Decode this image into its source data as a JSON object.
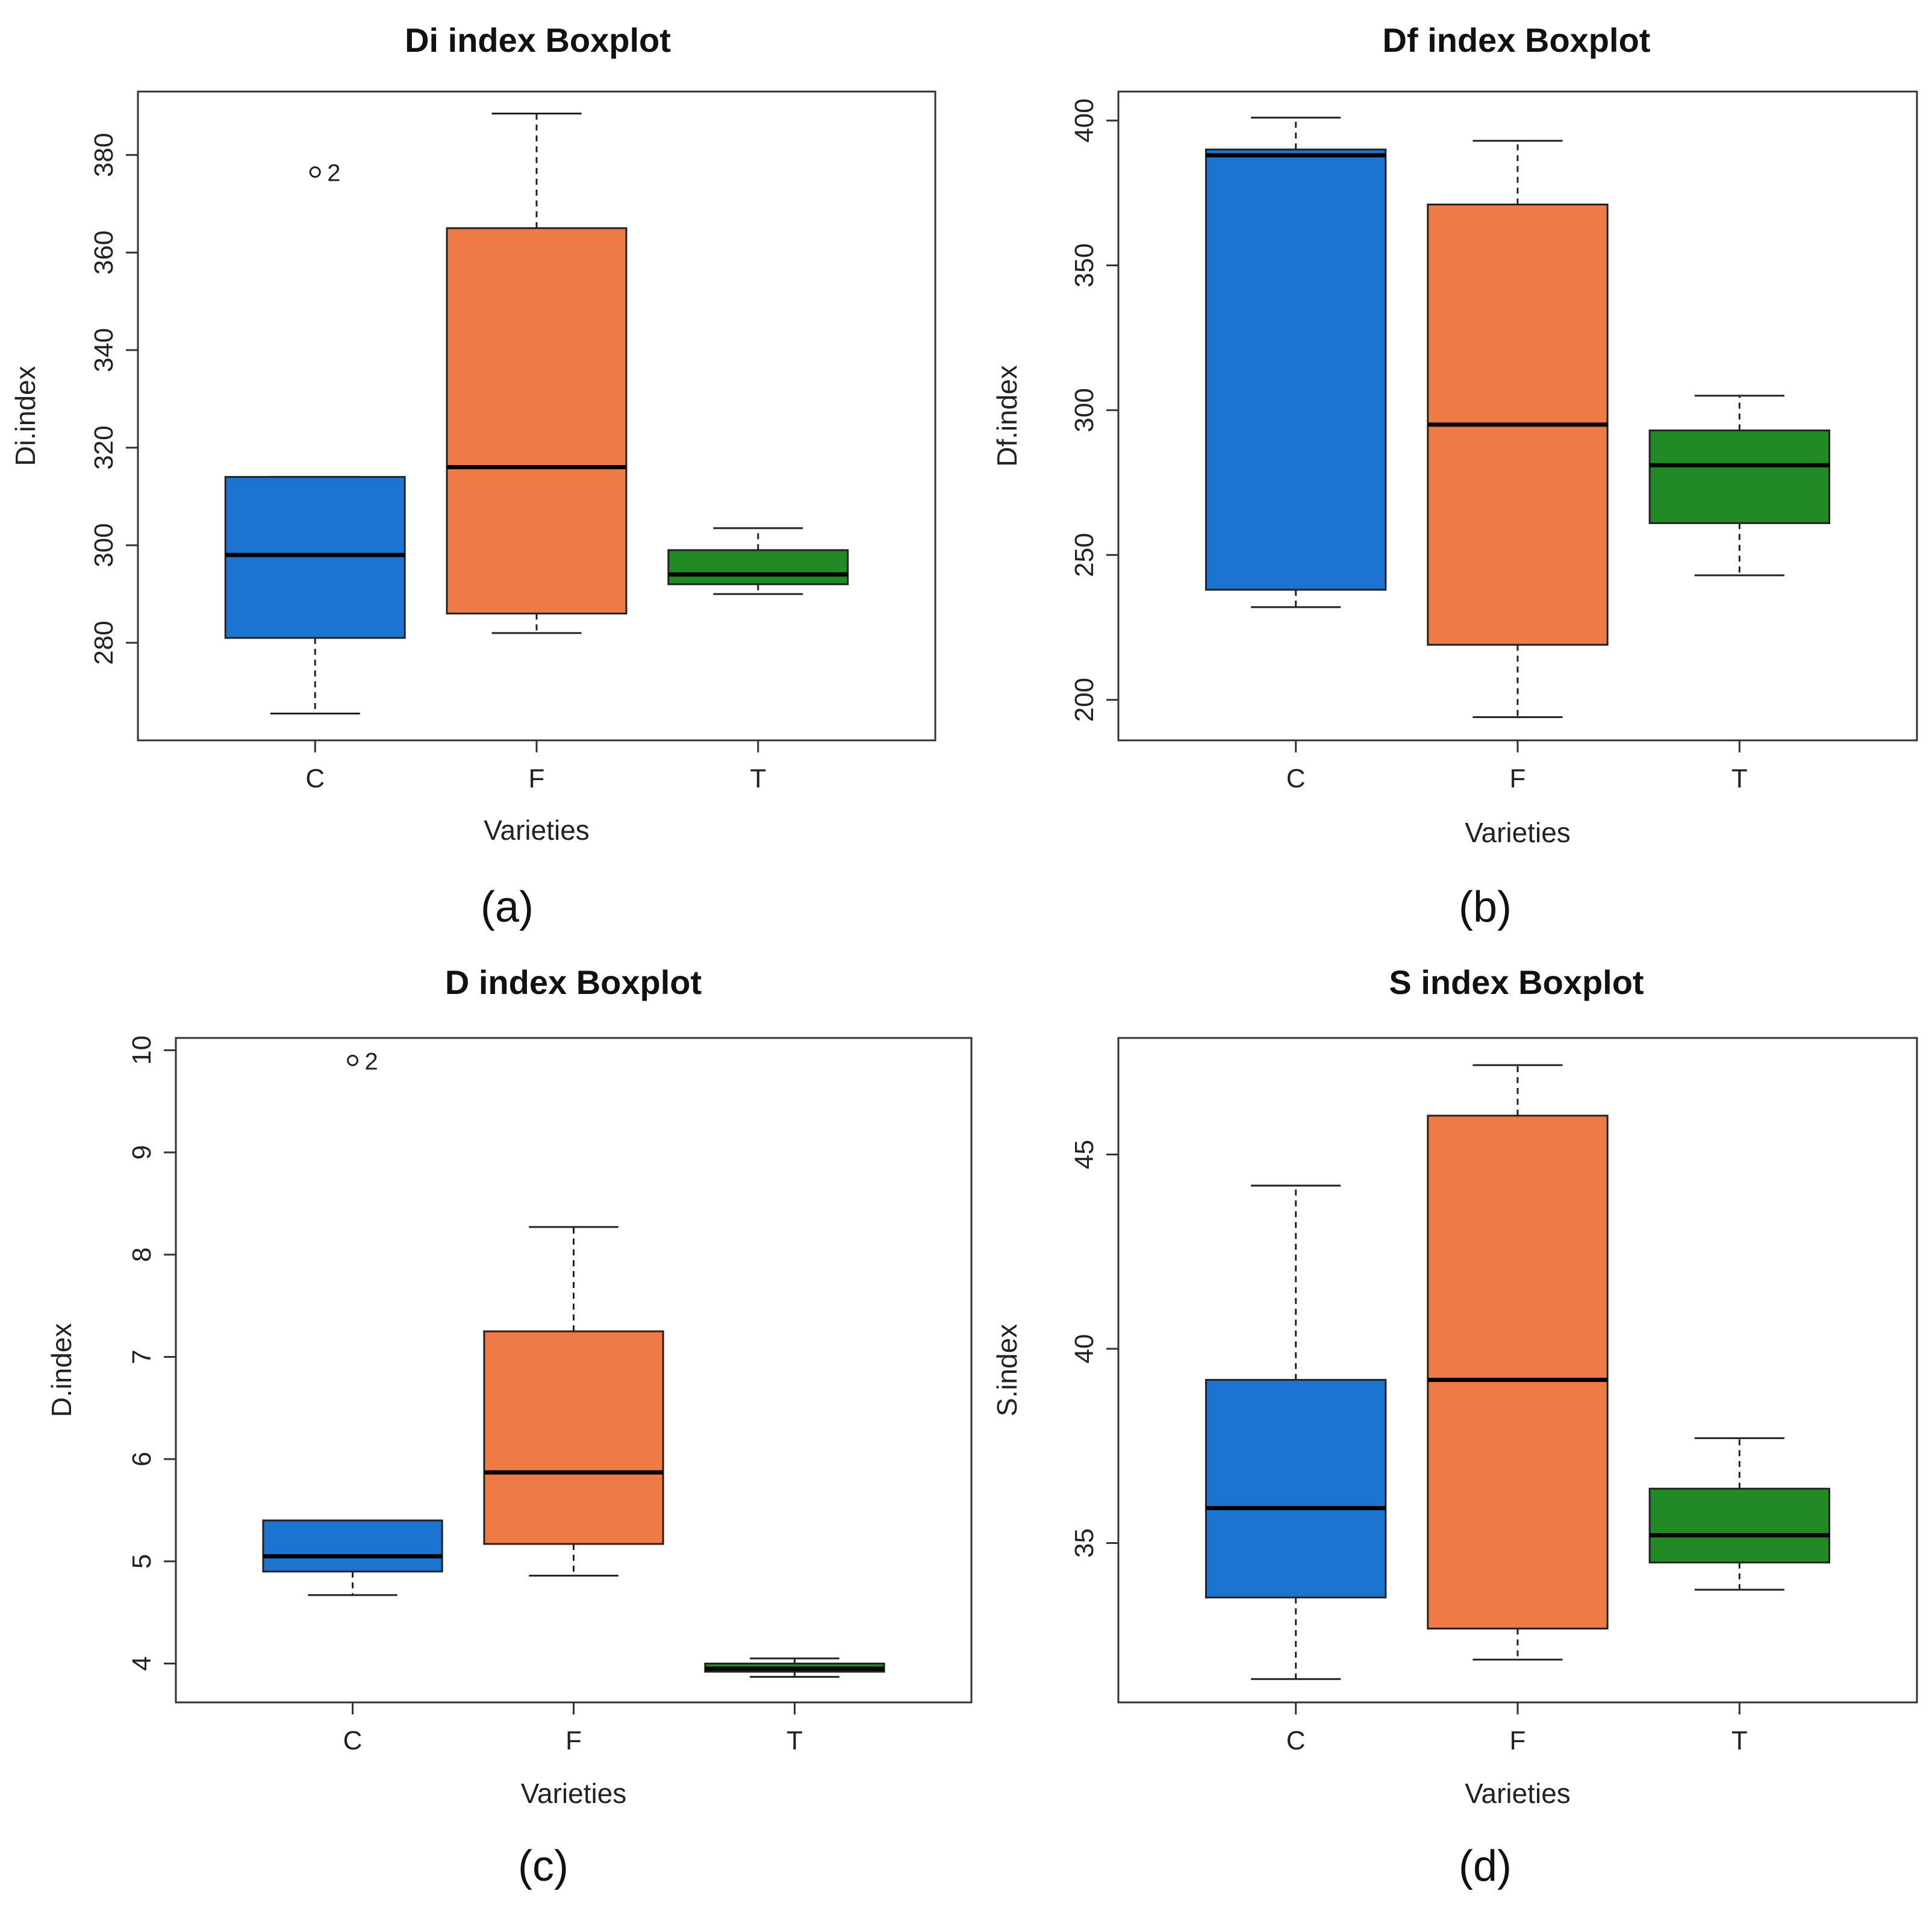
{
  "figure": {
    "type": "boxplot-grid",
    "panel_count": 4
  },
  "colors": {
    "C": "#1c74d0",
    "F": "#ee7a45",
    "T": "#218a24",
    "median": "#000000",
    "frame": "#333333"
  },
  "chart_data": [
    {
      "type": "boxplot",
      "caption": "(a)",
      "title": "Di index Boxplot",
      "xlabel": "Varieties",
      "ylabel": "Di.index",
      "ylim": [
        260,
        393
      ],
      "yticks": [
        280,
        300,
        320,
        340,
        360,
        380
      ],
      "series": [
        {
          "name": "C",
          "whisker_low": 265.5,
          "q1": 281,
          "median": 298,
          "q3": 314,
          "whisker_high": 314,
          "outliers": [
            {
              "value": 376.5,
              "label": "2"
            }
          ]
        },
        {
          "name": "F",
          "whisker_low": 282,
          "q1": 286,
          "median": 316,
          "q3": 365,
          "whisker_high": 388.5,
          "outliers": []
        },
        {
          "name": "T",
          "whisker_low": 290,
          "q1": 292,
          "median": 294,
          "q3": 299,
          "whisker_high": 303.5,
          "outliers": []
        }
      ]
    },
    {
      "type": "boxplot",
      "caption": "(b)",
      "title": "Df index Boxplot",
      "xlabel": "Varieties",
      "ylabel": "Df.index",
      "ylim": [
        186,
        410
      ],
      "yticks": [
        200,
        250,
        300,
        350,
        400
      ],
      "series": [
        {
          "name": "C",
          "whisker_low": 232,
          "q1": 238,
          "median": 388,
          "q3": 390,
          "whisker_high": 401,
          "outliers": []
        },
        {
          "name": "F",
          "whisker_low": 194,
          "q1": 219,
          "median": 295,
          "q3": 371,
          "whisker_high": 393,
          "outliers": []
        },
        {
          "name": "T",
          "whisker_low": 243,
          "q1": 261,
          "median": 281,
          "q3": 293,
          "whisker_high": 305,
          "outliers": []
        }
      ]
    },
    {
      "type": "boxplot",
      "caption": "(c)",
      "title": "D index Boxplot",
      "xlabel": "Varieties",
      "ylabel": "D.index",
      "ylim": [
        3.62,
        10.12
      ],
      "yticks": [
        4,
        5,
        6,
        7,
        8,
        9,
        10
      ],
      "series": [
        {
          "name": "C",
          "whisker_low": 4.67,
          "q1": 4.9,
          "median": 5.05,
          "q3": 5.4,
          "whisker_high": 5.4,
          "outliers": [
            {
              "value": 9.9,
              "label": "2"
            }
          ]
        },
        {
          "name": "F",
          "whisker_low": 4.86,
          "q1": 5.17,
          "median": 5.87,
          "q3": 7.25,
          "whisker_high": 8.27,
          "outliers": []
        },
        {
          "name": "T",
          "whisker_low": 3.87,
          "q1": 3.92,
          "median": 3.95,
          "q3": 4.0,
          "whisker_high": 4.05,
          "outliers": []
        }
      ]
    },
    {
      "type": "boxplot",
      "caption": "(d)",
      "title": "S index Boxplot",
      "xlabel": "Varieties",
      "ylabel": "S.index",
      "ylim": [
        30.9,
        48.0
      ],
      "yticks": [
        35,
        40,
        45
      ],
      "series": [
        {
          "name": "C",
          "whisker_low": 31.5,
          "q1": 33.6,
          "median": 35.9,
          "q3": 39.2,
          "whisker_high": 44.2,
          "outliers": []
        },
        {
          "name": "F",
          "whisker_low": 32.0,
          "q1": 32.8,
          "median": 39.2,
          "q3": 46.0,
          "whisker_high": 47.3,
          "outliers": []
        },
        {
          "name": "T",
          "whisker_low": 33.8,
          "q1": 34.5,
          "median": 35.2,
          "q3": 36.4,
          "whisker_high": 37.7,
          "outliers": []
        }
      ]
    }
  ]
}
